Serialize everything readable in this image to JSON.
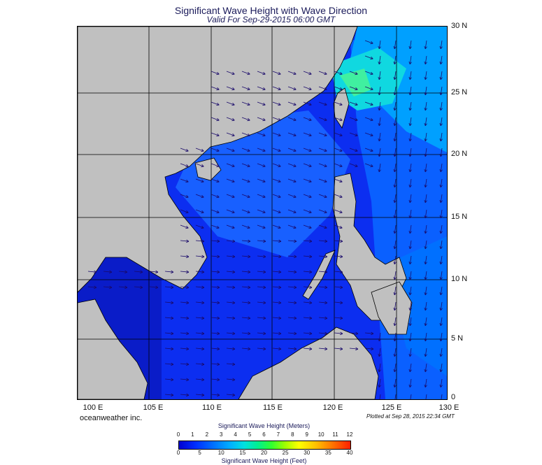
{
  "title": "Significant Wave Height with Wave Direction",
  "valid": "Valid For Sep-29-2015 06:00 GMT",
  "credit": "oceanweather inc.",
  "plotted": "Plotted at Sep 28, 2015 22:34 GMT",
  "lat_labels": [
    "30 N",
    "25 N",
    "20 N",
    "15 N",
    "10 N",
    "5 N",
    "0"
  ],
  "lon_labels": [
    "100 E",
    "105 E",
    "110 E",
    "115 E",
    "120 E",
    "125 E",
    "130 E"
  ],
  "legend": {
    "meters_title": "Significant Wave Height (Meters)",
    "feet_title": "Significant Wave Height (Feet)",
    "meter_ticks": [
      "0",
      "1",
      "2",
      "3",
      "4",
      "5",
      "6",
      "7",
      "8",
      "9",
      "10",
      "11",
      "12"
    ],
    "feet_ticks": [
      "0",
      "5",
      "10",
      "15",
      "20",
      "25",
      "30",
      "35",
      "40"
    ]
  },
  "colors": {
    "land": "#c0c0c0",
    "low_wave": "#0a30f0",
    "mid_wave": "#0080ff",
    "high_wave": "#30ff60",
    "arrow": "#1a0a6a"
  }
}
